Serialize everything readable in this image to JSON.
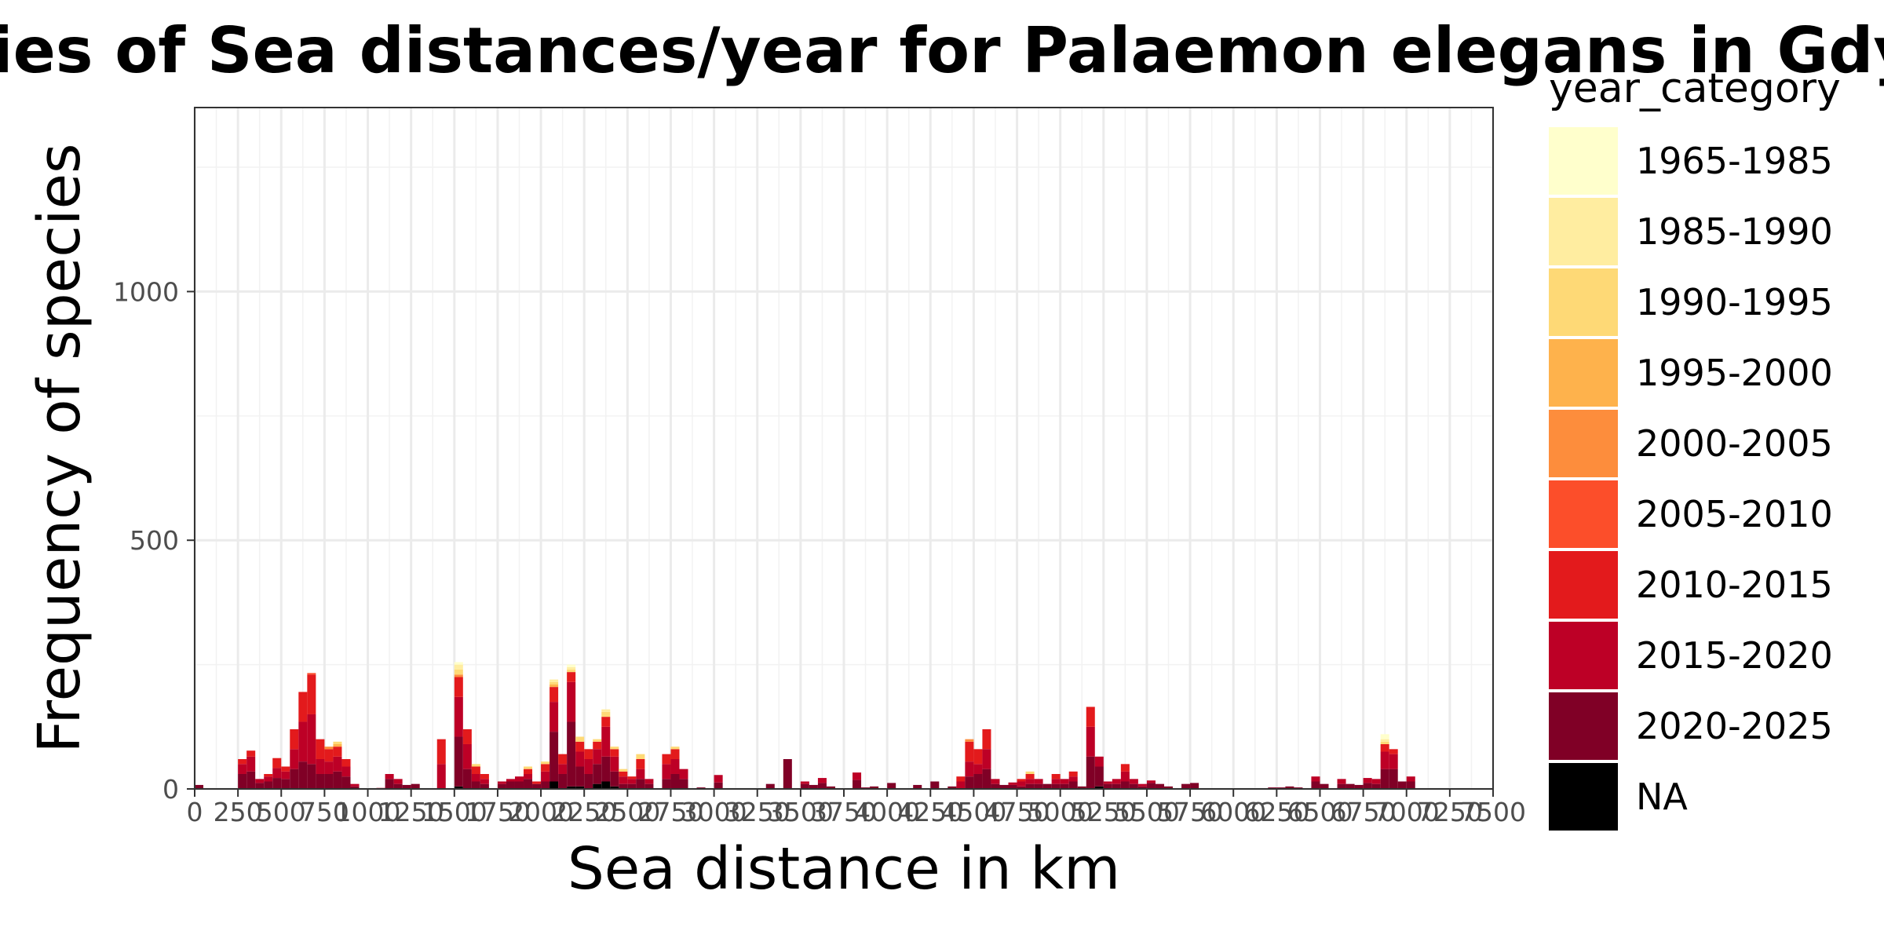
{
  "chart_data": {
    "type": "bar",
    "stacked": true,
    "title": "Frequencies of Sea distances/year for Palaemon elegans in Gdynia",
    "xlabel": "Sea distance in km",
    "ylabel": "Frequency of species",
    "xlim": [
      0,
      7500
    ],
    "ylim": [
      0,
      1370
    ],
    "x_ticks": [
      0,
      250,
      500,
      750,
      1000,
      1250,
      1500,
      1750,
      2000,
      2250,
      2500,
      2750,
      3000,
      3250,
      3500,
      3750,
      4000,
      4250,
      4500,
      4750,
      5000,
      5250,
      5500,
      5750,
      6000,
      6250,
      6500,
      6750,
      7000,
      7250,
      7500
    ],
    "x_tick_labels": [
      "0",
      "250",
      "500",
      "750",
      "1000",
      "1250",
      "1500",
      "1750",
      "2000",
      "2250",
      "2500",
      "2750",
      "3000",
      "3250",
      "3500",
      "3750",
      "4000",
      "4250",
      "4500",
      "4750",
      "5000",
      "5250",
      "5500",
      "5750",
      "6000",
      "6250",
      "6500",
      "6750",
      "7000",
      "7250",
      "7500"
    ],
    "y_ticks": [
      0,
      500,
      1000
    ],
    "y_tick_labels": [
      "0",
      "500",
      "1000"
    ],
    "grid": true,
    "bin_width": 50,
    "legend_position": "right",
    "legend_title": "year_category",
    "categories": [
      "1965-1985",
      "1985-1990",
      "1990-1995",
      "1995-2000",
      "2000-2005",
      "2005-2010",
      "2010-2015",
      "2015-2020",
      "2020-2025",
      "NA"
    ],
    "colors": [
      "#FFFFCC",
      "#FFEDA0",
      "#FED976",
      "#FEB24C",
      "#FD8D3C",
      "#FC4E2A",
      "#E31A1C",
      "#BD0026",
      "#800026",
      "#000000"
    ],
    "bars": [
      {
        "x": 25,
        "s": {
          "2020-2025": 8
        }
      },
      {
        "x": 275,
        "s": {
          "2010-2015": 10,
          "2015-2020": 20,
          "2020-2025": 30
        }
      },
      {
        "x": 325,
        "s": {
          "2010-2015": 12,
          "2015-2020": 30,
          "2020-2025": 35
        }
      },
      {
        "x": 375,
        "s": {
          "2015-2020": 8,
          "2020-2025": 12
        }
      },
      {
        "x": 425,
        "s": {
          "2010-2015": 5,
          "2015-2020": 10,
          "2020-2025": 15
        }
      },
      {
        "x": 475,
        "s": {
          "2010-2015": 20,
          "2015-2020": 20,
          "2020-2025": 22
        }
      },
      {
        "x": 525,
        "s": {
          "2010-2015": 10,
          "2015-2020": 15,
          "2020-2025": 20
        }
      },
      {
        "x": 575,
        "s": {
          "2010-2015": 40,
          "2015-2020": 40,
          "2020-2025": 40
        }
      },
      {
        "x": 625,
        "s": {
          "2010-2015": 60,
          "2015-2020": 80,
          "2020-2025": 55
        }
      },
      {
        "x": 675,
        "s": {
          "2005-2010": 3,
          "2010-2015": 80,
          "2015-2020": 100,
          "2020-2025": 50
        }
      },
      {
        "x": 725,
        "s": {
          "2010-2015": 40,
          "2015-2020": 30,
          "2020-2025": 30
        }
      },
      {
        "x": 775,
        "s": {
          "2000-2005": 5,
          "2010-2015": 25,
          "2015-2020": 25,
          "2020-2025": 30
        }
      },
      {
        "x": 825,
        "s": {
          "1990-1995": 5,
          "1995-2000": 5,
          "2010-2015": 20,
          "2015-2020": 30,
          "2020-2025": 35
        }
      },
      {
        "x": 875,
        "s": {
          "2010-2015": 15,
          "2015-2020": 20,
          "2020-2025": 25
        }
      },
      {
        "x": 925,
        "s": {
          "2015-2020": 5,
          "2020-2025": 5
        }
      },
      {
        "x": 1075,
        "s": {
          "2015-2020": 2
        }
      },
      {
        "x": 1125,
        "s": {
          "2015-2020": 10,
          "2020-2025": 20
        }
      },
      {
        "x": 1175,
        "s": {
          "2015-2020": 10,
          "2020-2025": 10
        }
      },
      {
        "x": 1225,
        "s": {
          "2020-2025": 8
        }
      },
      {
        "x": 1275,
        "s": {
          "2020-2025": 10
        }
      },
      {
        "x": 1425,
        "s": {
          "2010-2015": 50,
          "2015-2020": 50
        }
      },
      {
        "x": 1525,
        "s": {
          "1965-1985": 5,
          "1985-1990": 10,
          "1990-1995": 10,
          "2000-2005": 5,
          "2010-2015": 40,
          "2015-2020": 80,
          "2020-2025": 100,
          "NA": 5
        }
      },
      {
        "x": 1575,
        "s": {
          "2010-2015": 30,
          "2015-2020": 50,
          "2020-2025": 40
        }
      },
      {
        "x": 1625,
        "s": {
          "1990-1995": 5,
          "2010-2015": 15,
          "2015-2020": 15,
          "2020-2025": 15
        }
      },
      {
        "x": 1675,
        "s": {
          "2010-2015": 10,
          "2015-2020": 10,
          "2020-2025": 10
        }
      },
      {
        "x": 1775,
        "s": {
          "2015-2020": 5,
          "2020-2025": 10
        }
      },
      {
        "x": 1825,
        "s": {
          "2015-2020": 5,
          "2020-2025": 15
        }
      },
      {
        "x": 1875,
        "s": {
          "2015-2020": 10,
          "2020-2025": 15
        }
      },
      {
        "x": 1925,
        "s": {
          "1990-1995": 5,
          "2010-2015": 10,
          "2015-2020": 10,
          "2020-2025": 20
        }
      },
      {
        "x": 1975,
        "s": {
          "2010-2015": 5,
          "2020-2025": 10
        }
      },
      {
        "x": 2025,
        "s": {
          "1990-1995": 5,
          "2010-2015": 15,
          "2015-2020": 20,
          "2020-2025": 15
        }
      },
      {
        "x": 2075,
        "s": {
          "1985-1990": 5,
          "1990-1995": 5,
          "1995-2000": 5,
          "2010-2015": 30,
          "2015-2020": 60,
          "2020-2025": 100,
          "NA": 15
        }
      },
      {
        "x": 2125,
        "s": {
          "2010-2015": 20,
          "2015-2020": 20,
          "2020-2025": 30
        }
      },
      {
        "x": 2175,
        "s": {
          "1965-1985": 5,
          "1985-1990": 5,
          "1990-1995": 5,
          "2010-2015": 20,
          "2015-2020": 80,
          "2020-2025": 130,
          "NA": 5
        }
      },
      {
        "x": 2225,
        "s": {
          "1990-1995": 10,
          "2010-2015": 20,
          "2015-2020": 30,
          "2020-2025": 40,
          "NA": 5
        }
      },
      {
        "x": 2275,
        "s": {
          "2010-2015": 20,
          "2015-2020": 30,
          "2020-2025": 30
        }
      },
      {
        "x": 2325,
        "s": {
          "1990-1995": 5,
          "2010-2015": 15,
          "2015-2020": 30,
          "2020-2025": 40,
          "NA": 10
        }
      },
      {
        "x": 2375,
        "s": {
          "1985-1990": 5,
          "1990-1995": 10,
          "2010-2015": 20,
          "2015-2020": 60,
          "2020-2025": 50,
          "NA": 15
        }
      },
      {
        "x": 2425,
        "s": {
          "1990-1995": 5,
          "2010-2015": 15,
          "2015-2020": 30,
          "2020-2025": 30,
          "NA": 5
        }
      },
      {
        "x": 2475,
        "s": {
          "1990-1995": 5,
          "2010-2015": 10,
          "2015-2020": 15,
          "2020-2025": 10
        }
      },
      {
        "x": 2525,
        "s": {
          "2010-2015": 5,
          "2015-2020": 10,
          "2020-2025": 10
        }
      },
      {
        "x": 2575,
        "s": {
          "1990-1995": 10,
          "2010-2015": 20,
          "2015-2020": 20,
          "2020-2025": 20
        }
      },
      {
        "x": 2625,
        "s": {
          "2015-2020": 10,
          "2020-2025": 10
        }
      },
      {
        "x": 2725,
        "s": {
          "2010-2015": 20,
          "2015-2020": 30,
          "2020-2025": 20
        }
      },
      {
        "x": 2775,
        "s": {
          "1990-1995": 5,
          "2010-2015": 20,
          "2015-2020": 30,
          "2020-2025": 30
        }
      },
      {
        "x": 2825,
        "s": {
          "2015-2020": 20,
          "2020-2025": 20
        }
      },
      {
        "x": 2925,
        "s": {
          "2020-2025": 3
        }
      },
      {
        "x": 3025,
        "s": {
          "2015-2020": 15,
          "2020-2025": 13
        }
      },
      {
        "x": 3325,
        "s": {
          "2020-2025": 10
        }
      },
      {
        "x": 3425,
        "s": {
          "2020-2025": 60
        }
      },
      {
        "x": 3525,
        "s": {
          "2015-2020": 5,
          "2020-2025": 10
        }
      },
      {
        "x": 3575,
        "s": {
          "2020-2025": 8
        }
      },
      {
        "x": 3625,
        "s": {
          "2015-2020": 10,
          "2020-2025": 12
        }
      },
      {
        "x": 3675,
        "s": {
          "2020-2025": 5
        }
      },
      {
        "x": 3825,
        "s": {
          "2015-2020": 15,
          "2020-2025": 18
        }
      },
      {
        "x": 3875,
        "s": {
          "2020-2025": 3
        }
      },
      {
        "x": 3925,
        "s": {
          "2020-2025": 5
        }
      },
      {
        "x": 4025,
        "s": {
          "2020-2025": 12
        }
      },
      {
        "x": 4175,
        "s": {
          "2020-2025": 8
        }
      },
      {
        "x": 4275,
        "s": {
          "2020-2025": 15
        }
      },
      {
        "x": 4375,
        "s": {
          "2020-2025": 5
        }
      },
      {
        "x": 4425,
        "s": {
          "2010-2015": 10,
          "2015-2020": 15
        }
      },
      {
        "x": 4475,
        "s": {
          "2000-2005": 5,
          "2010-2015": 40,
          "2015-2020": 30,
          "2020-2025": 25
        }
      },
      {
        "x": 4525,
        "s": {
          "2010-2015": 30,
          "2015-2020": 20,
          "2020-2025": 30
        }
      },
      {
        "x": 4575,
        "s": {
          "2010-2015": 40,
          "2015-2020": 40,
          "2020-2025": 40
        }
      },
      {
        "x": 4625,
        "s": {
          "2015-2020": 10,
          "2020-2025": 10
        }
      },
      {
        "x": 4675,
        "s": {
          "2020-2025": 8
        }
      },
      {
        "x": 4725,
        "s": {
          "2015-2020": 5,
          "2020-2025": 8
        }
      },
      {
        "x": 4775,
        "s": {
          "2010-2015": 5,
          "2015-2020": 10,
          "2020-2025": 5
        }
      },
      {
        "x": 4825,
        "s": {
          "1990-1995": 5,
          "2010-2015": 10,
          "2015-2020": 10,
          "2020-2025": 10
        }
      },
      {
        "x": 4875,
        "s": {
          "2015-2020": 10,
          "2020-2025": 10
        }
      },
      {
        "x": 4925,
        "s": {
          "2020-2025": 10
        }
      },
      {
        "x": 4975,
        "s": {
          "2010-2015": 10,
          "2015-2020": 10,
          "2020-2025": 10
        }
      },
      {
        "x": 5025,
        "s": {
          "2015-2020": 10,
          "2020-2025": 10
        }
      },
      {
        "x": 5075,
        "s": {
          "2010-2015": 10,
          "2015-2020": 10,
          "2020-2025": 15
        }
      },
      {
        "x": 5125,
        "s": {
          "2020-2025": 5
        }
      },
      {
        "x": 5175,
        "s": {
          "2010-2015": 40,
          "2015-2020": 60,
          "2020-2025": 65
        }
      },
      {
        "x": 5225,
        "s": {
          "2015-2020": 20,
          "2020-2025": 40,
          "NA": 5
        }
      },
      {
        "x": 5275,
        "s": {
          "2015-2020": 5,
          "2020-2025": 10
        }
      },
      {
        "x": 5325,
        "s": {
          "2015-2020": 10,
          "2020-2025": 10
        }
      },
      {
        "x": 5375,
        "s": {
          "2010-2015": 15,
          "2015-2020": 20,
          "2020-2025": 15
        }
      },
      {
        "x": 5425,
        "s": {
          "2015-2020": 10,
          "2020-2025": 10
        }
      },
      {
        "x": 5475,
        "s": {
          "2015-2020": 5,
          "2020-2025": 5
        }
      },
      {
        "x": 5525,
        "s": {
          "2015-2020": 5,
          "2020-2025": 12
        }
      },
      {
        "x": 5575,
        "s": {
          "2020-2025": 10
        }
      },
      {
        "x": 5625,
        "s": {
          "2020-2025": 5
        }
      },
      {
        "x": 5725,
        "s": {
          "2020-2025": 10
        }
      },
      {
        "x": 5775,
        "s": {
          "2020-2025": 12
        }
      },
      {
        "x": 6225,
        "s": {
          "2020-2025": 3
        }
      },
      {
        "x": 6275,
        "s": {
          "2020-2025": 3
        }
      },
      {
        "x": 6325,
        "s": {
          "2020-2025": 5
        }
      },
      {
        "x": 6375,
        "s": {
          "2020-2025": 3
        }
      },
      {
        "x": 6475,
        "s": {
          "2015-2020": 10,
          "2020-2025": 15
        }
      },
      {
        "x": 6525,
        "s": {
          "2020-2025": 10
        }
      },
      {
        "x": 6625,
        "s": {
          "2015-2020": 10,
          "2020-2025": 10
        }
      },
      {
        "x": 6675,
        "s": {
          "2020-2025": 10
        }
      },
      {
        "x": 6725,
        "s": {
          "2020-2025": 8
        }
      },
      {
        "x": 6775,
        "s": {
          "2015-2020": 10,
          "2020-2025": 12
        }
      },
      {
        "x": 6825,
        "s": {
          "2015-2020": 10,
          "2020-2025": 10
        }
      },
      {
        "x": 6875,
        "s": {
          "1965-1985": 10,
          "1985-1990": 5,
          "1990-1995": 5,
          "2010-2015": 15,
          "2015-2020": 35,
          "2020-2025": 40
        }
      },
      {
        "x": 6925,
        "s": {
          "2010-2015": 10,
          "2015-2020": 30,
          "2020-2025": 40
        }
      },
      {
        "x": 6975,
        "s": {
          "2020-2025": 15
        }
      },
      {
        "x": 7025,
        "s": {
          "2015-2020": 10,
          "2020-2025": 15
        }
      }
    ]
  }
}
